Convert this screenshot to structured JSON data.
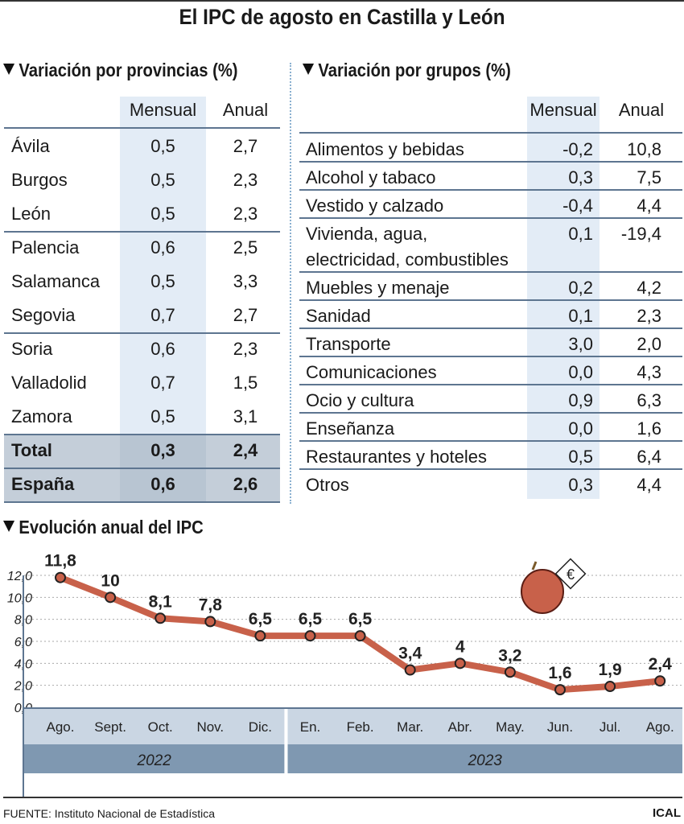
{
  "title": "El IPC de agosto en Castilla y León",
  "provincias": {
    "heading": "Variación por provincias (%)",
    "col_mensual": "Mensual",
    "col_anual": "Anual",
    "rows": [
      {
        "name": "Ávila",
        "mensual": "0,5",
        "anual": "2,7"
      },
      {
        "name": "Burgos",
        "mensual": "0,5",
        "anual": "2,3"
      },
      {
        "name": "León",
        "mensual": "0,5",
        "anual": "2,3"
      },
      {
        "name": "Palencia",
        "mensual": "0,6",
        "anual": "2,5"
      },
      {
        "name": "Salamanca",
        "mensual": "0,5",
        "anual": "3,3"
      },
      {
        "name": "Segovia",
        "mensual": "0,7",
        "anual": "2,7"
      },
      {
        "name": "Soria",
        "mensual": "0,6",
        "anual": "2,3"
      },
      {
        "name": "Valladolid",
        "mensual": "0,7",
        "anual": "1,5"
      },
      {
        "name": "Zamora",
        "mensual": "0,5",
        "anual": "3,1"
      },
      {
        "name": "Total",
        "mensual": "0,3",
        "anual": "2,4"
      },
      {
        "name": "España",
        "mensual": "0,6",
        "anual": "2,6"
      }
    ]
  },
  "grupos": {
    "heading": "Variación por grupos (%)",
    "col_mensual": "Mensual",
    "col_anual": "Anual",
    "rows": [
      {
        "name": "Alimentos y bebidas",
        "mensual": "-0,2",
        "anual": "10,8"
      },
      {
        "name": "Alcohol y tabaco",
        "mensual": "0,3",
        "anual": "7,5"
      },
      {
        "name": "Vestido y calzado",
        "mensual": "-0,4",
        "anual": "4,4"
      },
      {
        "name": "Vivienda, agua,",
        "name2": "electricidad, combustibles",
        "mensual": "0,1",
        "anual": "-19,4"
      },
      {
        "name": "Muebles y menaje",
        "mensual": "0,2",
        "anual": "4,2"
      },
      {
        "name": "Sanidad",
        "mensual": "0,1",
        "anual": "2,3"
      },
      {
        "name": "Transporte",
        "mensual": "3,0",
        "anual": "2,0"
      },
      {
        "name": "Comunicaciones",
        "mensual": "0,0",
        "anual": "4,3"
      },
      {
        "name": "Ocio y cultura",
        "mensual": "0,9",
        "anual": "6,3"
      },
      {
        "name": "Enseñanza",
        "mensual": "0,0",
        "anual": "1,6"
      },
      {
        "name": "Restaurantes y hoteles",
        "mensual": "0,5",
        "anual": "6,4"
      },
      {
        "name": "Otros",
        "mensual": "0,3",
        "anual": "4,4"
      }
    ]
  },
  "chart_data": {
    "type": "line",
    "title": "Evolución anual del IPC",
    "categories": [
      "Ago.",
      "Sept.",
      "Oct.",
      "Nov.",
      "Dic.",
      "En.",
      "Feb.",
      "Mar.",
      "Abr.",
      "May.",
      "Jun.",
      "Jul.",
      "Ago."
    ],
    "years": [
      {
        "label": "2022",
        "span": 5
      },
      {
        "label": "2023",
        "span": 8
      }
    ],
    "values": [
      11.8,
      10,
      8.1,
      7.8,
      6.5,
      6.5,
      6.5,
      3.4,
      4,
      3.2,
      1.6,
      1.9,
      2.4
    ],
    "data_labels": [
      "11,8",
      "10",
      "8,1",
      "7,8",
      "6,5",
      "6,5",
      "6,5",
      "3,4",
      "4",
      "3,2",
      "1,6",
      "1,9",
      "2,4"
    ],
    "yticks": [
      "0,0",
      "2,0",
      "4,0",
      "6,0",
      "8,0",
      "10,0",
      "12,0"
    ],
    "ylim": [
      0,
      12
    ],
    "grid": true,
    "line_color": "#c8614a"
  },
  "footer": {
    "source": "FUENTE: Instituto Nacional de Estadística",
    "brand": "ICAL"
  }
}
